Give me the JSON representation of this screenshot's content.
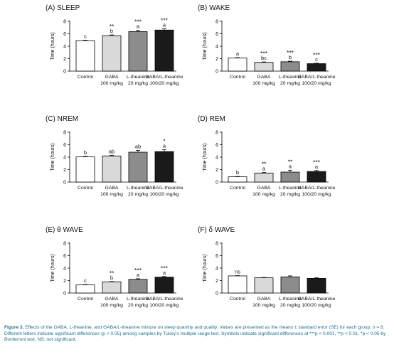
{
  "categories": [
    {
      "name": "Control",
      "dose": ""
    },
    {
      "name": "GABA",
      "dose": "100 mg/kg"
    },
    {
      "name": "L-theanine",
      "dose": "20 mg/kg"
    },
    {
      "name": "GABA/L-theanine",
      "dose": "100/20 mg/kg"
    }
  ],
  "bar_colors": [
    "#ffffff",
    "#d9d9d9",
    "#8c8c8c",
    "#1a1a1a"
  ],
  "caption": {
    "label": "Figure 3.",
    "text": "Effects of the GABA, L-theanine, and GABA/L-theanine mixture on sleep quantity and quality. Values are presented as the means ± standard error (SE) for each group, n = 8. Different letters indicate significant differences (p < 0.05) among samples by Tukey's multiple range test. Symbols indicate significant differences at ***p < 0.001, **p < 0.01, *p < 0.05 by Bonferroni test. NS: not significant."
  },
  "chart_data": [
    {
      "type": "bar",
      "title": "(A)  SLEEP",
      "ylabel": "Time (hours)",
      "ylim": [
        0,
        8
      ],
      "yticks": [
        0,
        2,
        4,
        6,
        8
      ],
      "categories": [
        "Control",
        "GABA",
        "L-theanine",
        "GABA/L-theanine"
      ],
      "values": [
        4.9,
        5.7,
        6.35,
        6.6
      ],
      "errors": [
        0.08,
        0.12,
        0.2,
        0.2
      ],
      "letters": [
        "c",
        "b",
        "a",
        "a"
      ],
      "stars": [
        "",
        "**",
        "***",
        "***"
      ]
    },
    {
      "type": "bar",
      "title": "(B)  WAKE",
      "ylabel": "Time (hours)",
      "ylim": [
        0,
        8
      ],
      "yticks": [
        0,
        2,
        4,
        6,
        8
      ],
      "categories": [
        "Control",
        "GABA",
        "L-theanine",
        "GABA/L-theanine"
      ],
      "values": [
        2.1,
        1.4,
        1.5,
        1.2
      ],
      "errors": [
        0.07,
        0.08,
        0.1,
        0.08
      ],
      "letters": [
        "a",
        "bc",
        "b",
        "c"
      ],
      "stars": [
        "",
        "***",
        "***",
        "***"
      ]
    },
    {
      "type": "bar",
      "title": "(C)  NREM",
      "ylabel": "Time (hours)",
      "ylim": [
        0,
        8
      ],
      "yticks": [
        0,
        2,
        4,
        6,
        8
      ],
      "categories": [
        "Control",
        "GABA",
        "L-theanine",
        "GABA/L-theanine"
      ],
      "values": [
        4.05,
        4.2,
        4.8,
        4.9
      ],
      "errors": [
        0.08,
        0.1,
        0.3,
        0.3
      ],
      "letters": [
        "b",
        "ab",
        "ab",
        "a"
      ],
      "stars": [
        "",
        "",
        "",
        "*"
      ]
    },
    {
      "type": "bar",
      "title": "(D)  REM",
      "ylabel": "Time (hours)",
      "ylim": [
        0,
        8
      ],
      "yticks": [
        0,
        2,
        4,
        6,
        8
      ],
      "categories": [
        "Control",
        "GABA",
        "L-theanine",
        "GABA/L-theanine"
      ],
      "values": [
        0.85,
        1.45,
        1.6,
        1.7
      ],
      "errors": [
        0.05,
        0.08,
        0.3,
        0.15
      ],
      "letters": [
        "b",
        "a",
        "a",
        "a"
      ],
      "stars": [
        "",
        "**",
        "**",
        "***"
      ]
    },
    {
      "type": "bar",
      "title": "(E)  θ WAVE",
      "ylabel": "Time (hours)",
      "ylim": [
        0,
        8
      ],
      "yticks": [
        0,
        2,
        4,
        6,
        8
      ],
      "categories": [
        "Control",
        "GABA",
        "L-theanine",
        "GABA/L-theanine"
      ],
      "values": [
        1.3,
        1.8,
        2.2,
        2.55
      ],
      "errors": [
        0.05,
        0.05,
        0.1,
        0.1
      ],
      "letters": [
        "c",
        "b",
        "a",
        "a"
      ],
      "stars": [
        "",
        "**",
        "***",
        "***"
      ]
    },
    {
      "type": "bar",
      "title": "(F)  δ WAVE",
      "ylabel": "Time (hours)",
      "ylim": [
        0,
        8
      ],
      "yticks": [
        0,
        2,
        4,
        6,
        8
      ],
      "categories": [
        "Control",
        "GABA",
        "L-theanine",
        "GABA/L-theanine"
      ],
      "values": [
        2.75,
        2.45,
        2.6,
        2.35
      ],
      "errors": [
        0.05,
        0.05,
        0.15,
        0.1
      ],
      "letters": [
        "",
        "",
        "",
        ""
      ],
      "stars": [
        "ns",
        "",
        "",
        ""
      ]
    }
  ]
}
